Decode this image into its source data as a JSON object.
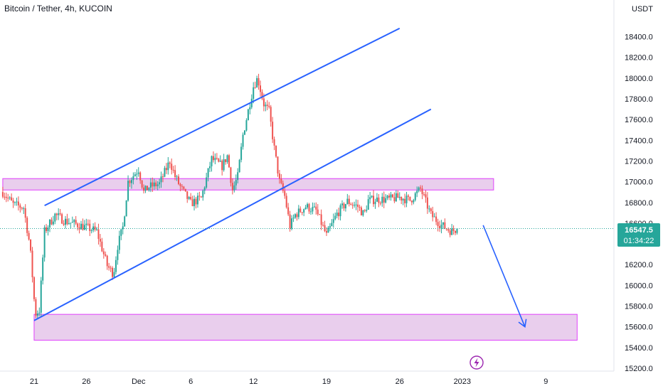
{
  "chart_data": {
    "type": "candlestick",
    "title": "Bitcoin / Tether, 4h, KUCOIN",
    "y_unit": "USDT",
    "ylim": [
      15200,
      18600
    ],
    "y_ticks": [
      15200,
      15400,
      15600,
      15800,
      16000,
      16200,
      16400,
      16600,
      16800,
      17000,
      17200,
      17400,
      17600,
      17800,
      18000,
      18200,
      18400
    ],
    "y_tick_labels": [
      "15200.0",
      "15400.0",
      "15600.0",
      "15800.0",
      "16000.0",
      "16200.0",
      "16400.0",
      "16600.0",
      "16800.0",
      "17000.0",
      "17200.0",
      "17400.0",
      "17600.0",
      "17800.0",
      "18000.0",
      "18200.0",
      "18400.0"
    ],
    "x_tick_labels": [
      "21",
      "26",
      "Dec",
      "6",
      "12",
      "19",
      "26",
      "2023",
      "9"
    ],
    "x_tick_dates": [
      "2022-11-21",
      "2022-11-26",
      "2022-12-01",
      "2022-12-06",
      "2022-12-12",
      "2022-12-19",
      "2022-12-26",
      "2023-01-01",
      "2023-01-09"
    ],
    "last_price": "16547.5",
    "countdown": "01:34:22",
    "colors": {
      "up": "#26a69a",
      "down": "#ef5350",
      "trendline": "#2962ff",
      "zone_fill": "#e1bee7",
      "zone_border": "#e040fb",
      "last_price": "#26a69a"
    },
    "price_path_days_from_nov18": [
      0,
      1,
      2,
      2.6,
      2.9,
      3.1,
      3.5,
      4,
      5,
      6,
      7,
      8,
      9,
      10,
      10.6,
      11,
      11.5,
      12,
      13,
      13.5,
      14,
      15,
      16,
      16.5,
      17,
      18,
      19,
      20,
      21,
      21.5,
      22,
      22.5,
      23,
      24,
      24.4,
      25,
      25.5,
      26,
      26.5,
      27,
      27.5,
      28,
      29,
      30,
      31,
      32,
      33,
      34,
      34.6,
      35,
      36,
      37,
      38,
      39,
      40,
      41,
      42,
      43,
      43.5
    ],
    "price_path_close": [
      16900,
      16780,
      16750,
      16380,
      16010,
      15720,
      15760,
      16520,
      16680,
      16620,
      16590,
      16560,
      16520,
      16190,
      16110,
      16380,
      16560,
      17000,
      17120,
      16900,
      16950,
      16980,
      17200,
      17050,
      16950,
      16790,
      16840,
      17220,
      17150,
      17250,
      16920,
      17050,
      17450,
      17920,
      18000,
      17750,
      17680,
      17320,
      17000,
      16860,
      16570,
      16680,
      16760,
      16720,
      16480,
      16690,
      16810,
      16760,
      16680,
      16820,
      16830,
      16830,
      16850,
      16820,
      16930,
      16680,
      16580,
      16520,
      16547.5
    ],
    "zones": [
      {
        "low": 16920,
        "high": 17030,
        "from": "2022-11-18",
        "to": "2023-01-04"
      },
      {
        "low": 15470,
        "high": 15720,
        "from": "2022-11-21",
        "to": "2023-01-12"
      }
    ],
    "trendlines": [
      {
        "from": [
          "2022-11-21",
          15660
        ],
        "to": [
          "2022-12-29",
          17700
        ]
      },
      {
        "from": [
          "2022-11-22",
          16770
        ],
        "to": [
          "2022-12-26",
          18480
        ]
      }
    ],
    "projection_arrow": {
      "from": [
        "2023-01-03",
        16580
      ],
      "to": [
        "2023-01-07",
        15600
      ]
    }
  }
}
